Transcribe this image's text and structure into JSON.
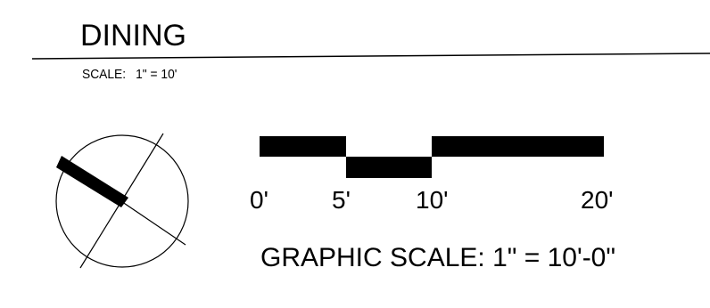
{
  "title": "DINING",
  "scale_note": {
    "label": "SCALE:",
    "value": "1\" = 10'"
  },
  "graphic_scale": {
    "ticks": [
      "0'",
      "5'",
      "10'",
      "20'"
    ],
    "caption": "GRAPHIC SCALE: 1\" = 10'-0\""
  },
  "colors": {
    "ink": "#000000",
    "paper": "#ffffff"
  },
  "icons": {
    "north_arrow": "north-arrow-icon"
  }
}
